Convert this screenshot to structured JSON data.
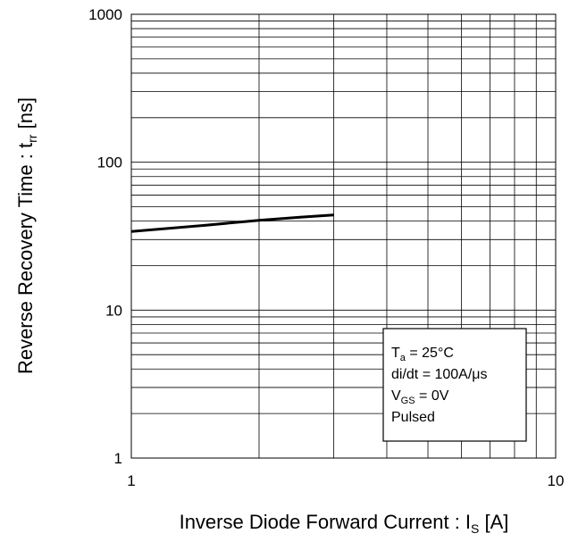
{
  "chart_data": {
    "type": "line",
    "xscale": "log",
    "yscale": "log",
    "xlim": [
      1,
      10
    ],
    "ylim": [
      1,
      1000
    ],
    "grid": true,
    "x_ticks": [
      "1",
      "10"
    ],
    "y_ticks": [
      "1",
      "10",
      "100",
      "1000"
    ],
    "xlabel": {
      "main": "Inverse Diode Forward Current : I",
      "sub": "S",
      "unit": " [A]"
    },
    "ylabel": {
      "main": "Reverse Recovery Time : t",
      "sub": "rr",
      "unit": " [ns]"
    },
    "series": [
      {
        "x": [
          1.0,
          1.5,
          2.0,
          2.5,
          3.0
        ],
        "y": [
          34,
          37.5,
          40.5,
          42.5,
          44
        ]
      }
    ],
    "annotation": {
      "lines": [
        {
          "main": "T",
          "sub": "a",
          "rest": " = 25°C"
        },
        {
          "main": "di/dt = 100A/μs",
          "sub": "",
          "rest": ""
        },
        {
          "main": "V",
          "sub": "GS",
          "rest": " = 0V"
        },
        {
          "main": "Pulsed",
          "sub": "",
          "rest": ""
        }
      ]
    },
    "colors": {
      "grid": "#000000",
      "line": "#000000",
      "background": "#ffffff"
    }
  }
}
